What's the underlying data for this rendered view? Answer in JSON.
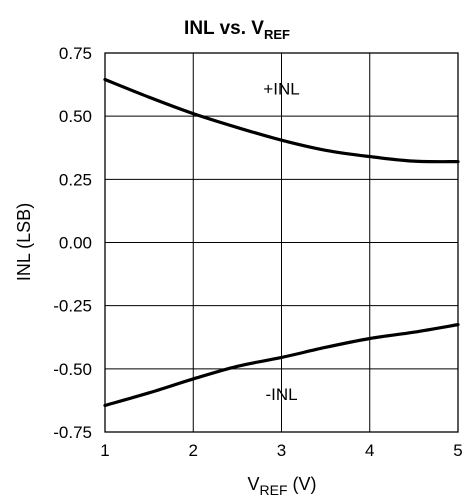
{
  "chart_data": {
    "type": "line",
    "title_main": "INL vs. V",
    "title_sub": "REF",
    "xlabel_main": "V",
    "xlabel_sub": "REF",
    "xlabel_tail": " (V)",
    "ylabel": "INL (LSB)",
    "xlim": [
      1,
      5
    ],
    "ylim": [
      -0.75,
      0.75
    ],
    "xticks": [
      1,
      2,
      3,
      4,
      5
    ],
    "xtick_labels": [
      "1",
      "2",
      "3",
      "4",
      "5"
    ],
    "yticks": [
      0.75,
      0.5,
      0.25,
      0.0,
      -0.25,
      -0.5,
      -0.75
    ],
    "ytick_labels": [
      "0.75",
      "0.50",
      "0.25",
      "0.00",
      "-0.25",
      "-0.50",
      "-0.75"
    ],
    "grid": true,
    "series": [
      {
        "name": "+INL",
        "color": "#000000",
        "x": [
          1.0,
          1.5,
          2.0,
          2.5,
          3.0,
          3.5,
          4.0,
          4.5,
          5.0
        ],
        "y": [
          0.645,
          0.575,
          0.51,
          0.455,
          0.405,
          0.365,
          0.34,
          0.322,
          0.32
        ]
      },
      {
        "name": "-INL",
        "color": "#000000",
        "x": [
          1.0,
          1.5,
          2.0,
          2.5,
          3.0,
          3.5,
          4.0,
          4.5,
          5.0
        ],
        "y": [
          -0.645,
          -0.595,
          -0.54,
          -0.49,
          -0.455,
          -0.415,
          -0.38,
          -0.355,
          -0.325
        ]
      }
    ],
    "annotations": [
      {
        "text": "+INL",
        "x": 3.0,
        "y": 0.61
      },
      {
        "text": "-INL",
        "x": 3.0,
        "y": -0.6
      }
    ]
  }
}
